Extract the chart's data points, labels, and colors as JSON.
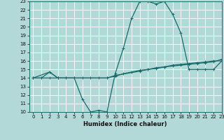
{
  "title": "",
  "xlabel": "Humidex (Indice chaleur)",
  "bg_color": "#b2d8d8",
  "line_color": "#1a6b6b",
  "grid_color": "#ffffff",
  "ylim": [
    10,
    23
  ],
  "xlim": [
    -0.5,
    23
  ],
  "yticks": [
    10,
    11,
    12,
    13,
    14,
    15,
    16,
    17,
    18,
    19,
    20,
    21,
    22,
    23
  ],
  "xticks": [
    0,
    1,
    2,
    3,
    4,
    5,
    6,
    7,
    8,
    9,
    10,
    11,
    12,
    13,
    14,
    15,
    16,
    17,
    18,
    19,
    20,
    21,
    22,
    23
  ],
  "line1_x": [
    0,
    1,
    2,
    3,
    4,
    5,
    6,
    7,
    8,
    9,
    10,
    11,
    12,
    13,
    14,
    15,
    16,
    17,
    18,
    19,
    20,
    21,
    22,
    23
  ],
  "line1_y": [
    14,
    14,
    14.7,
    14,
    14,
    14,
    11.5,
    10,
    10.2,
    10,
    14.5,
    17.5,
    21,
    23,
    23,
    22.7,
    23,
    21.5,
    19.3,
    15,
    15,
    15,
    15,
    16
  ],
  "line2_x": [
    0,
    1,
    2,
    3,
    4,
    5,
    6,
    7,
    8,
    9,
    10,
    11,
    12,
    13,
    14,
    15,
    16,
    17,
    18,
    19,
    20,
    21,
    22,
    23
  ],
  "line2_y": [
    14,
    14,
    14,
    14,
    14,
    14,
    14,
    14,
    14,
    14,
    14.2,
    14.5,
    14.7,
    14.9,
    15.0,
    15.2,
    15.3,
    15.5,
    15.6,
    15.7,
    15.8,
    15.9,
    16.0,
    16.0
  ],
  "line3_x": [
    0,
    2,
    3,
    9,
    10,
    13,
    14,
    15,
    16,
    17,
    18,
    19,
    20,
    21,
    22,
    23
  ],
  "line3_y": [
    14,
    14.7,
    14,
    14,
    14.3,
    14.8,
    15.0,
    15.1,
    15.3,
    15.4,
    15.5,
    15.6,
    15.7,
    15.8,
    15.9,
    16.2
  ],
  "tick_fontsize": 5,
  "xlabel_fontsize": 6
}
